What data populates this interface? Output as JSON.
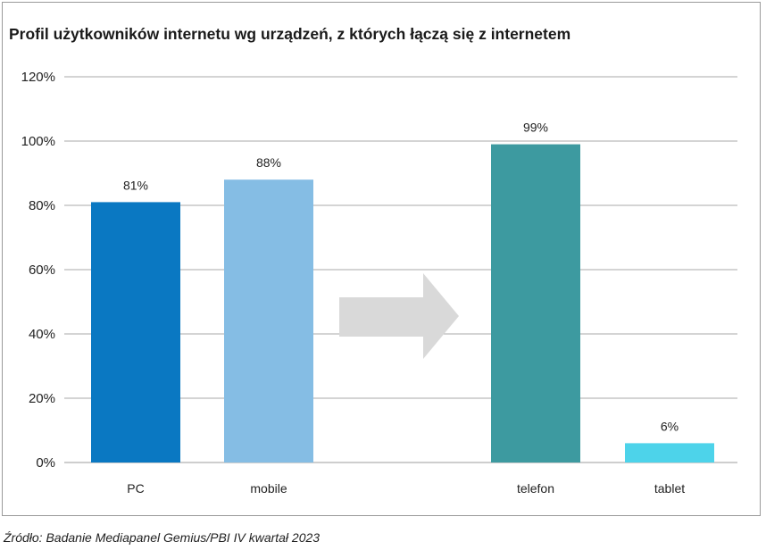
{
  "chart_data": {
    "type": "bar",
    "title": "Profil użytkowników internetu wg urządzeń, z których łączą się z internetem",
    "categories": [
      "PC",
      "mobile",
      "telefon",
      "tablet"
    ],
    "values": [
      81,
      88,
      99,
      6
    ],
    "data_labels": [
      "81%",
      "88%",
      "99%",
      "6%"
    ],
    "bar_colors": [
      "#0a78c2",
      "#85bde4",
      "#3d9aa0",
      "#4dd3ea"
    ],
    "ylim": [
      0,
      120
    ],
    "yticks": [
      0,
      20,
      40,
      60,
      80,
      100,
      120
    ],
    "ytick_labels": [
      "0%",
      "20%",
      "40%",
      "60%",
      "80%",
      "100%",
      "120%"
    ],
    "grid": true,
    "annotation": "arrow from mobile to telefon",
    "arrow_color": "#d9d9d9"
  },
  "source": "Źródło: Badanie Mediapanel Gemius/PBI IV kwartał 2023"
}
